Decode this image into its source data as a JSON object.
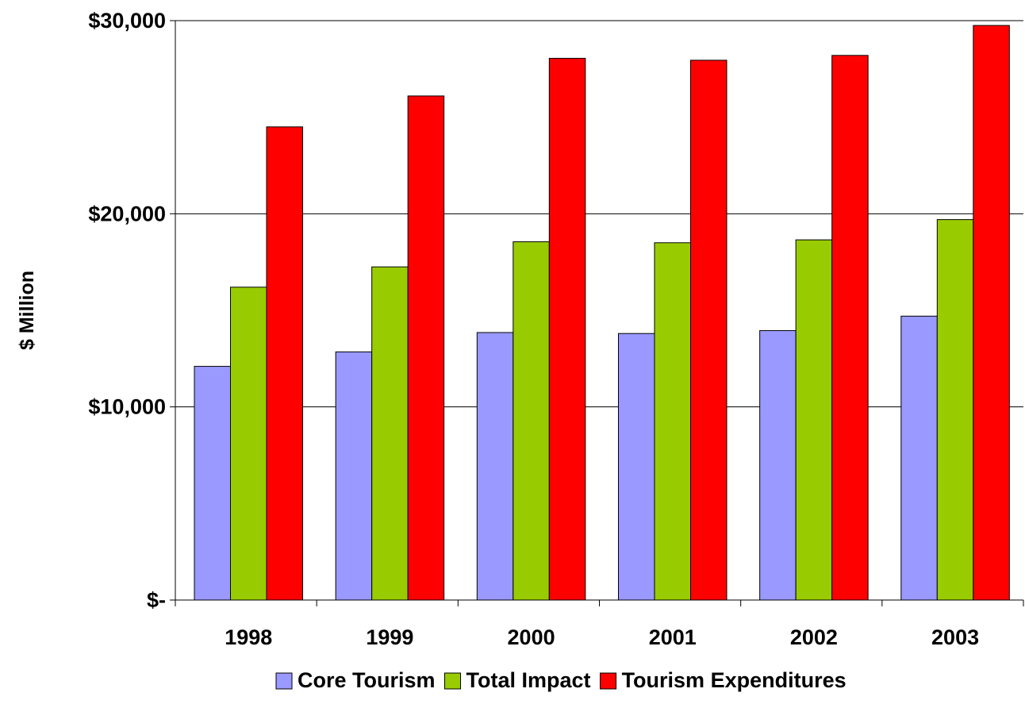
{
  "chart_data": {
    "type": "bar",
    "title": "",
    "xlabel": "",
    "ylabel": "$ Million",
    "categories": [
      "1998",
      "1999",
      "2000",
      "2001",
      "2002",
      "2003"
    ],
    "ylim": [
      0,
      30000
    ],
    "yticks": [
      0,
      10000,
      20000,
      30000
    ],
    "ytick_labels": [
      "$-",
      "$10,000",
      "$20,000",
      "$30,000"
    ],
    "grid": true,
    "legend_position": "bottom",
    "series": [
      {
        "name": "Core Tourism",
        "color": "#9999ff",
        "values": [
          12100,
          12850,
          13850,
          13800,
          13950,
          14700
        ]
      },
      {
        "name": "Total Impact",
        "color": "#99cc00",
        "values": [
          16200,
          17250,
          18550,
          18500,
          18650,
          19700
        ]
      },
      {
        "name": "Tourism Expenditures",
        "color": "#ff0000",
        "values": [
          24500,
          26100,
          28050,
          27950,
          28200,
          29750
        ]
      }
    ]
  }
}
